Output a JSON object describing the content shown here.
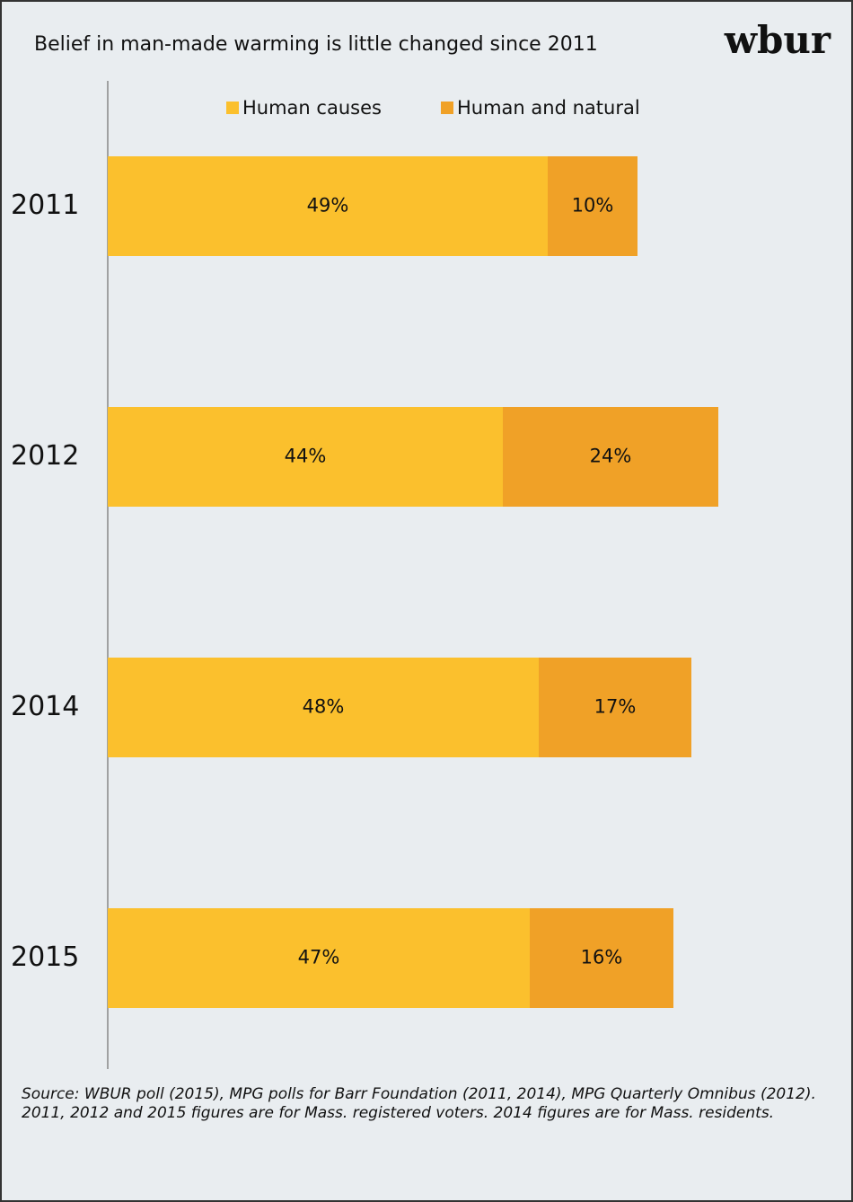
{
  "chart_data": {
    "type": "stacked_bar_horizontal",
    "title": "Belief in man-made warming is little changed since 2011",
    "logo": "wbur",
    "categories": [
      "2011",
      "2012",
      "2014",
      "2015"
    ],
    "series": [
      {
        "name": "Human causes",
        "color": "#fbc02d",
        "values": [
          49,
          44,
          48,
          47
        ],
        "value_labels": [
          "49%",
          "44%",
          "48%",
          "47%"
        ]
      },
      {
        "name": "Human and natural",
        "color": "#f0a127",
        "values": [
          10,
          24,
          17,
          16
        ],
        "value_labels": [
          "10%",
          "24%",
          "17%",
          "16%"
        ]
      }
    ],
    "notes": [
      "Source: WBUR poll (2015), MPG polls for Barr Foundation  (2011, 2014), MPG Quarterly Omnibus (2012).",
      "2011, 2012 and 2015 figures are for Mass. registered voters. 2014 figures are for Mass. residents."
    ]
  }
}
